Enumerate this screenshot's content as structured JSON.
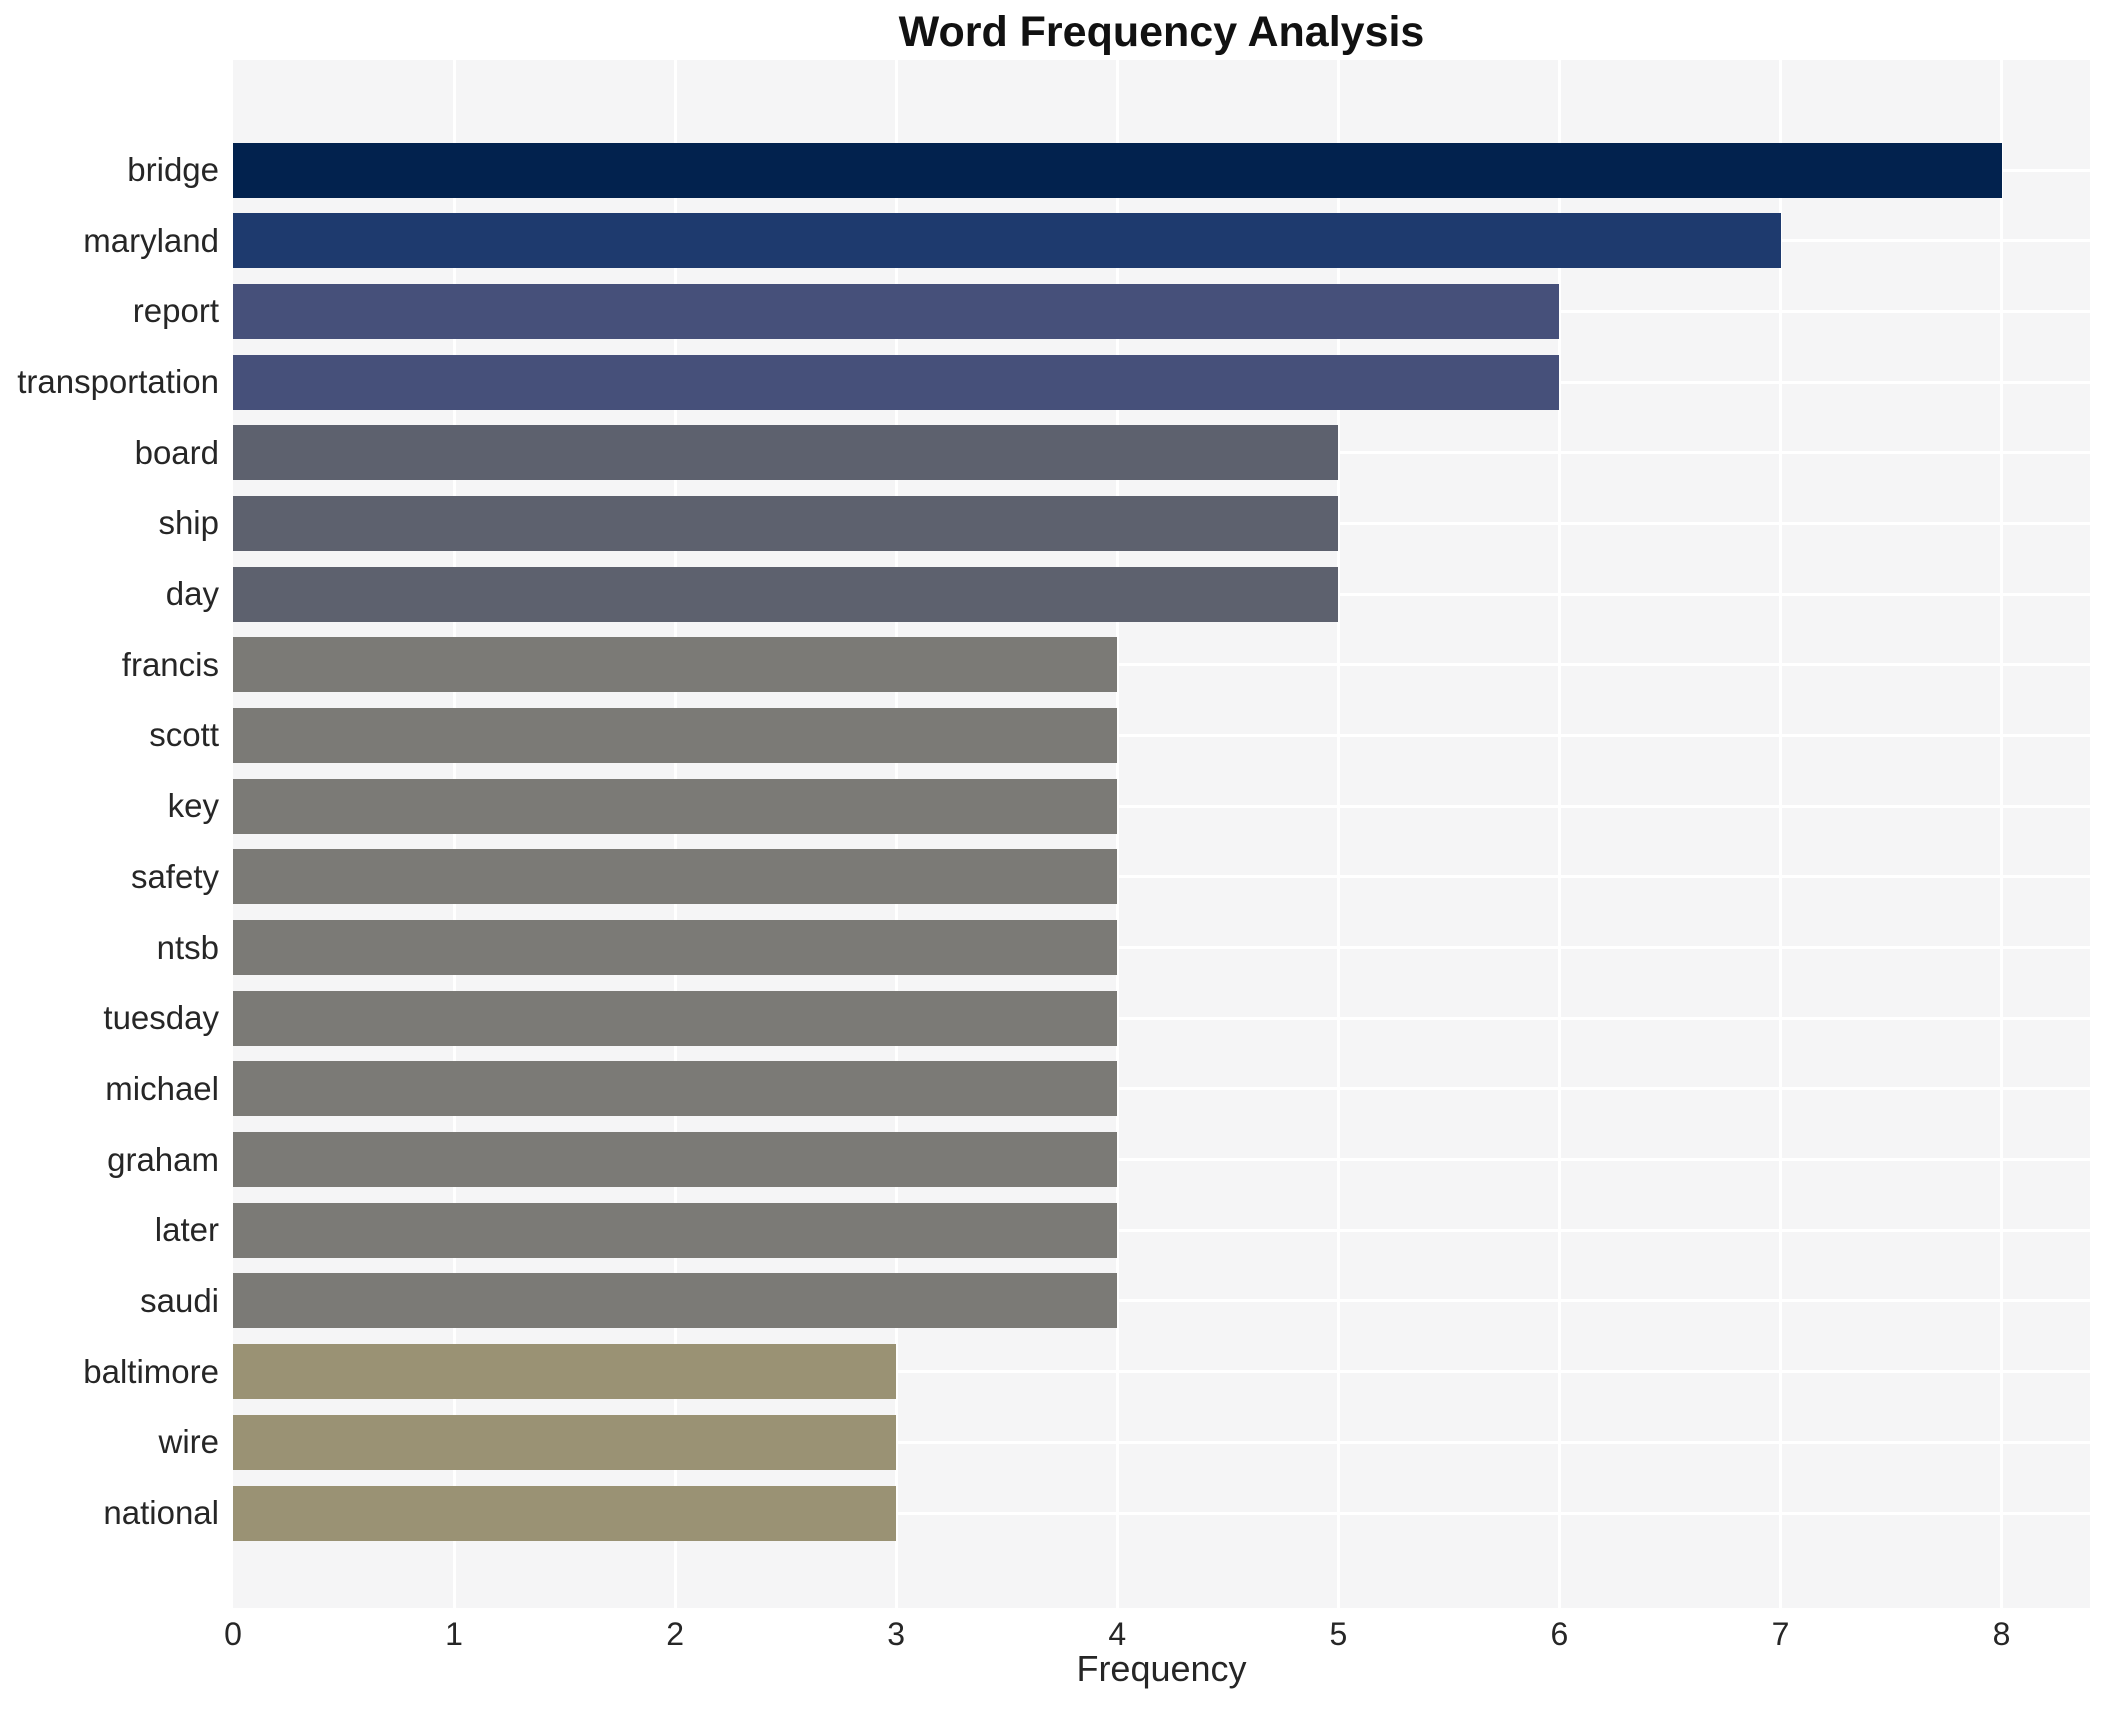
{
  "title": "Word Frequency Analysis",
  "chart_data": {
    "type": "bar",
    "orientation": "horizontal",
    "title": "Word Frequency Analysis",
    "xlabel": "Frequency",
    "ylabel": "",
    "categories": [
      "bridge",
      "maryland",
      "report",
      "transportation",
      "board",
      "ship",
      "day",
      "francis",
      "scott",
      "key",
      "safety",
      "ntsb",
      "tuesday",
      "michael",
      "graham",
      "later",
      "saudi",
      "baltimore",
      "wire",
      "national"
    ],
    "values": [
      8,
      7,
      6,
      6,
      5,
      5,
      5,
      4,
      4,
      4,
      4,
      4,
      4,
      4,
      4,
      4,
      4,
      3,
      3,
      3
    ],
    "bar_colors": [
      "#02224e",
      "#1e3a6e",
      "#46507a",
      "#46507a",
      "#5d616e",
      "#5d616e",
      "#5d616e",
      "#7b7a76",
      "#7b7a76",
      "#7b7a76",
      "#7b7a76",
      "#7b7a76",
      "#7b7a76",
      "#7b7a76",
      "#7b7a76",
      "#7b7a76",
      "#7b7a76",
      "#9a9274",
      "#9a9274",
      "#9a9274"
    ],
    "xticks": [
      0,
      1,
      2,
      3,
      4,
      5,
      6,
      7,
      8
    ],
    "xlim": [
      0,
      8.4
    ],
    "grid": true,
    "legend": false,
    "plot_background": "#f5f5f6",
    "gridline_color": "#ffffff"
  }
}
